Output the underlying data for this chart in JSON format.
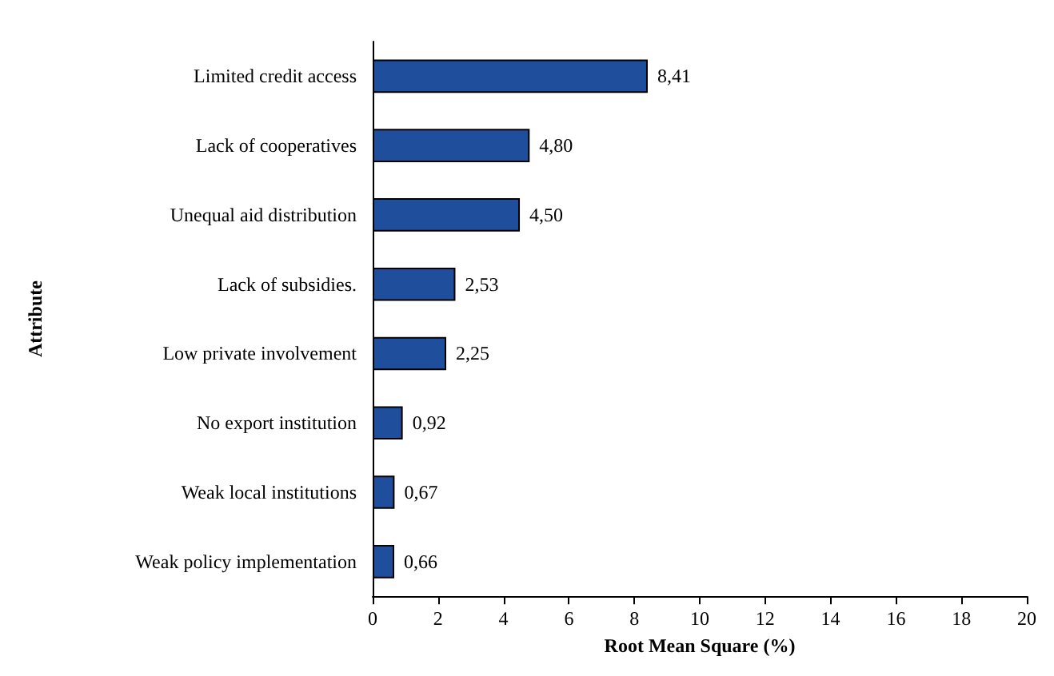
{
  "chart_data": {
    "type": "bar",
    "orientation": "horizontal",
    "xlabel": "Root Mean Square (%)",
    "ylabel": "Attribute",
    "categories": [
      "Limited credit access",
      "Lack of cooperatives",
      "Unequal aid distribution",
      "Lack of subsidies.",
      "Low private involvement",
      "No export institution",
      "Weak local institutions",
      "Weak policy implementation"
    ],
    "values": [
      8.41,
      4.8,
      4.5,
      2.53,
      2.25,
      0.92,
      0.67,
      0.66
    ],
    "value_labels": [
      "8,41",
      "4,80",
      "4,50",
      "2,53",
      "2,25",
      "0,92",
      "0,67",
      "0,66"
    ],
    "color": "#1f4e9c",
    "xlim": [
      0,
      20
    ],
    "xticks": [
      0,
      2,
      4,
      6,
      8,
      10,
      12,
      14,
      16,
      18,
      20
    ],
    "grid": false
  }
}
